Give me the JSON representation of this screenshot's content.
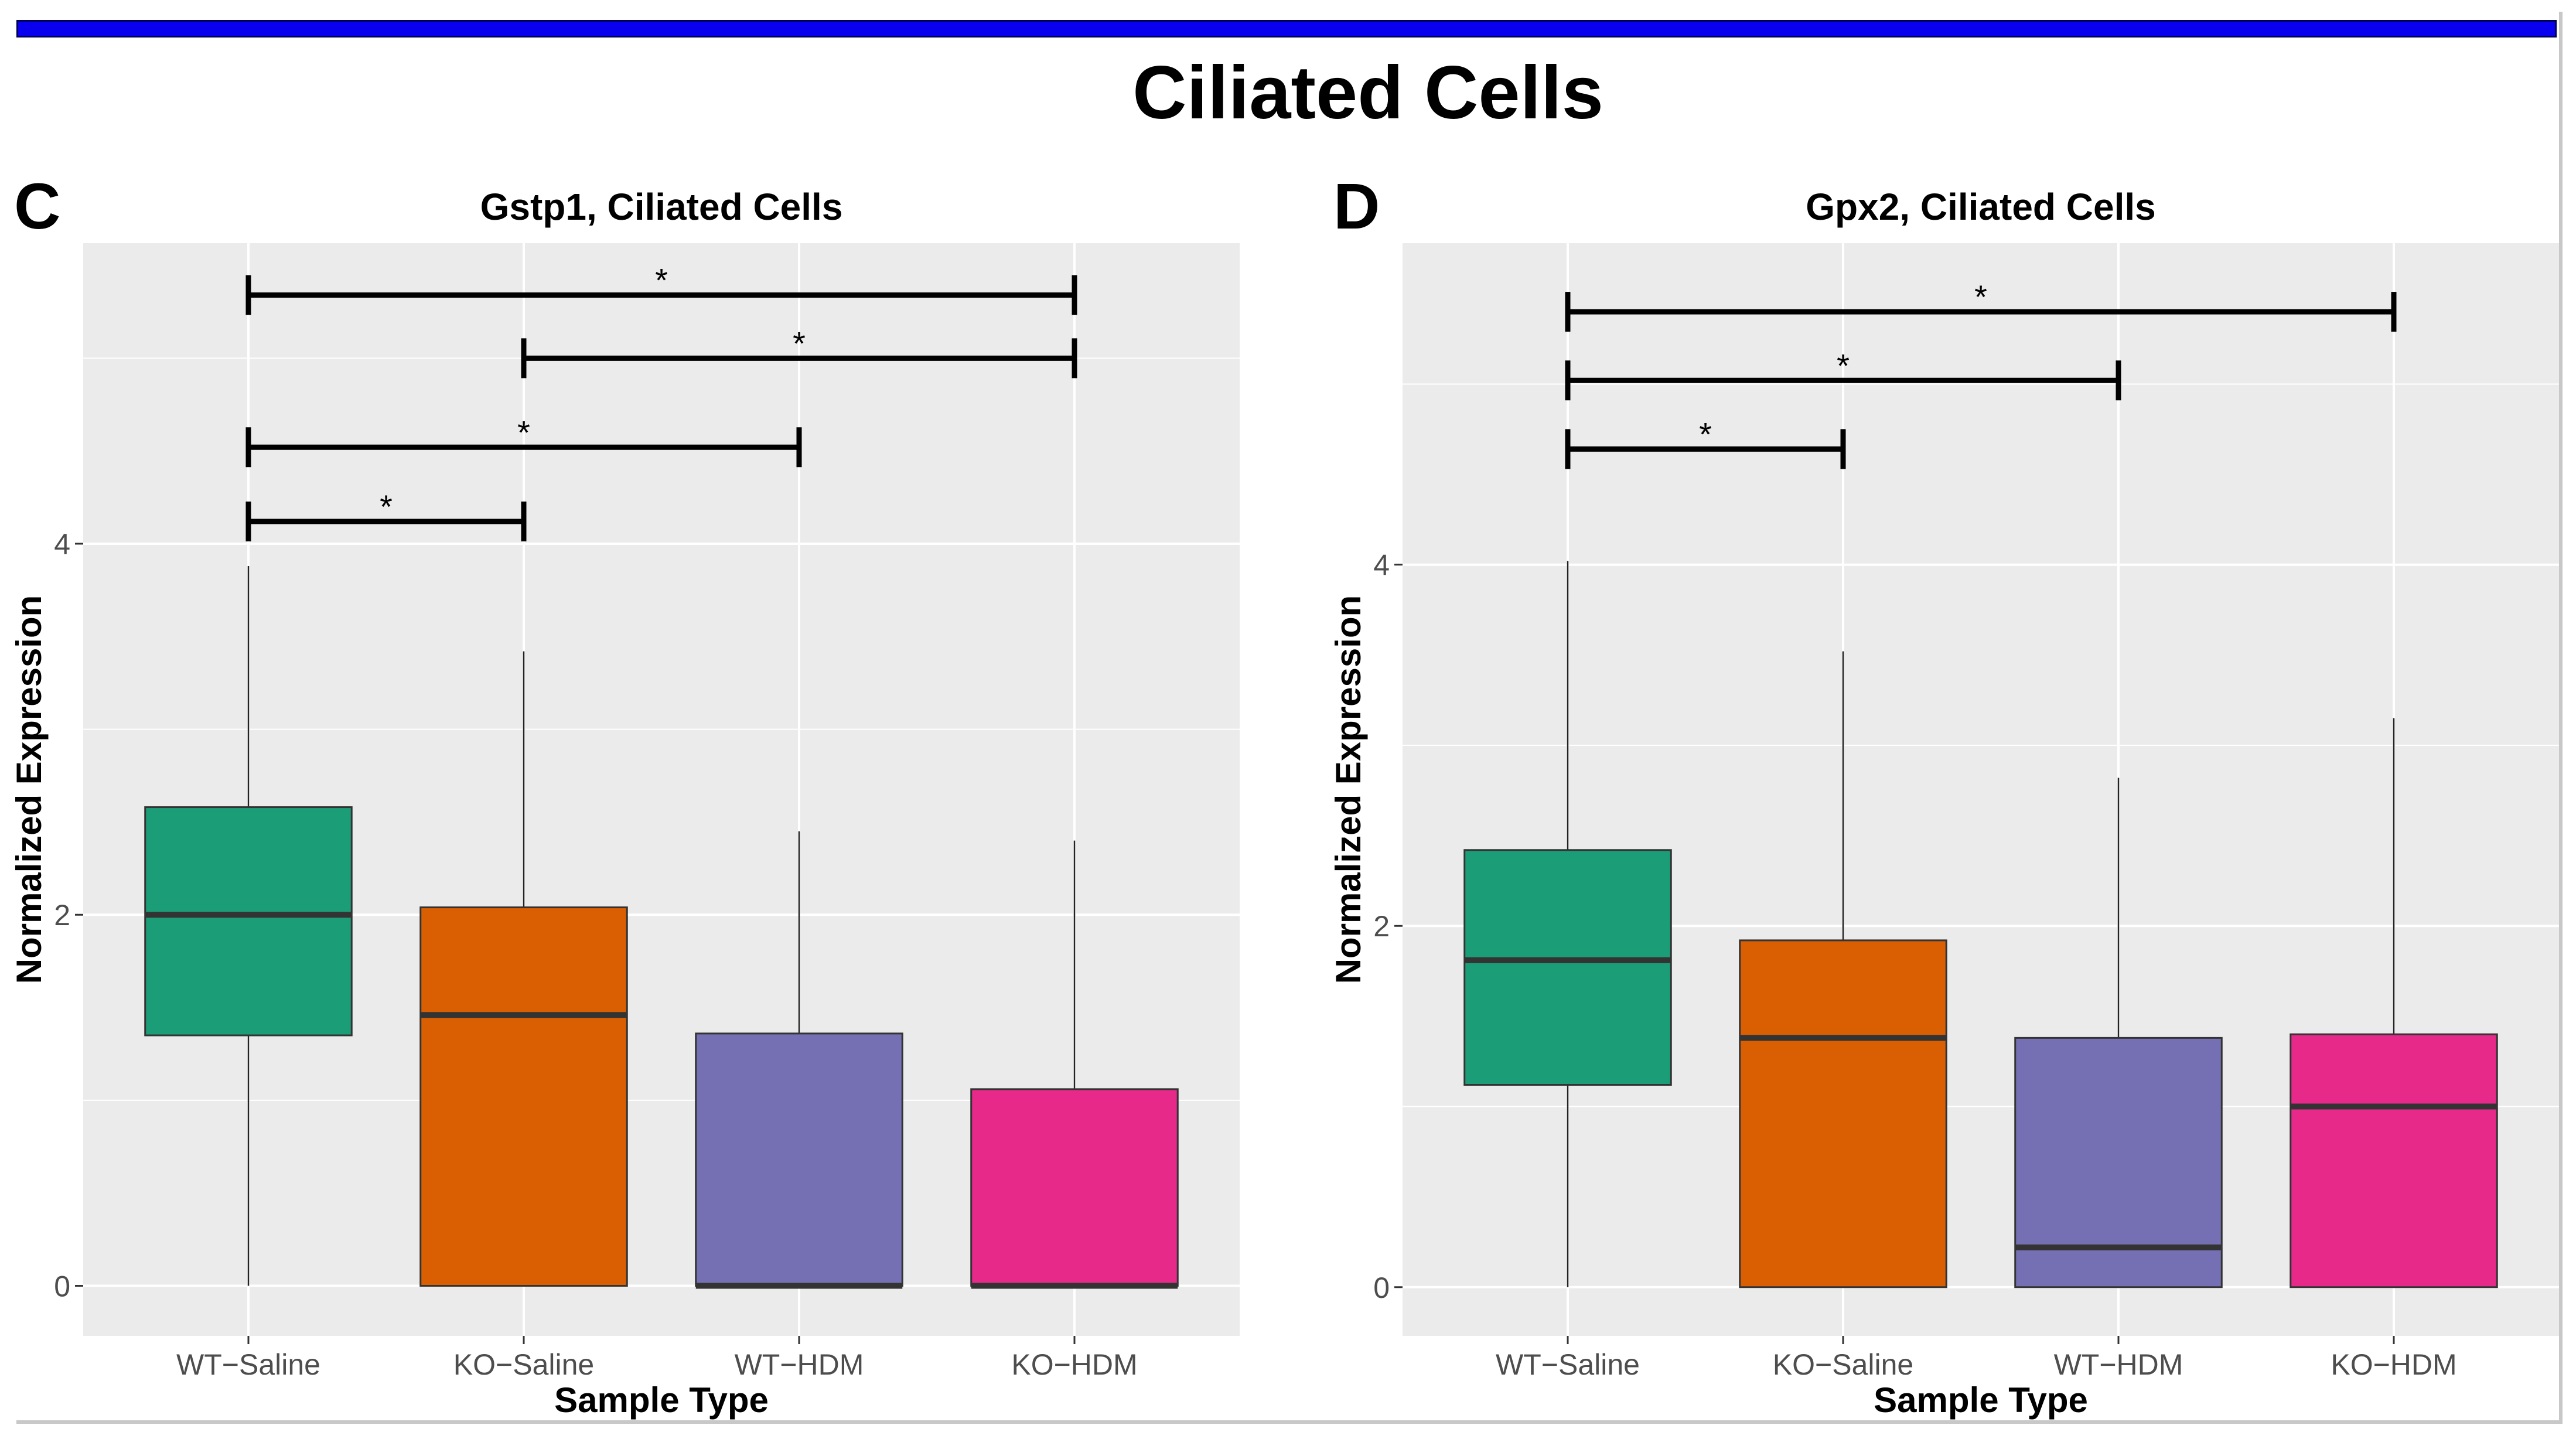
{
  "title": "Ciliated Cells",
  "colors": {
    "top_bar": "#0a00f0",
    "panel_bg": "#ebebeb",
    "grid": "#ffffff",
    "text": "#000000",
    "tick_text": "#4d4d4d"
  },
  "chart_data": [
    {
      "type": "box",
      "panel_letter": "C",
      "title": "Gstp1, Ciliated Cells",
      "xlabel": "Sample Type",
      "ylabel": "Normalized Expression",
      "categories": [
        "WT−Saline",
        "KO−Saline",
        "WT−HDM",
        "KO−HDM"
      ],
      "fill_colors": [
        "#1b9e77",
        "#d95f02",
        "#7570b3",
        "#e7298a"
      ],
      "boxes": [
        {
          "min": 0,
          "q1": 1.35,
          "median": 2.0,
          "q3": 2.58,
          "max": 3.88
        },
        {
          "min": 0,
          "q1": 0,
          "median": 1.46,
          "q3": 2.04,
          "max": 3.42
        },
        {
          "min": 0,
          "q1": 0,
          "median": 0,
          "q3": 1.36,
          "max": 2.45
        },
        {
          "min": 0,
          "q1": 0,
          "median": 0,
          "q3": 1.06,
          "max": 2.4
        }
      ],
      "ylim": [
        -0.27,
        5.62
      ],
      "yticks": [
        0,
        2,
        4
      ],
      "significance": [
        {
          "from": 0,
          "to": 1,
          "y": 4.12,
          "label": "*"
        },
        {
          "from": 0,
          "to": 2,
          "y": 4.52,
          "label": "*"
        },
        {
          "from": 1,
          "to": 3,
          "y": 5.0,
          "label": "*"
        },
        {
          "from": 0,
          "to": 3,
          "y": 5.34,
          "label": "*"
        }
      ]
    },
    {
      "type": "box",
      "panel_letter": "D",
      "title": "Gpx2, Ciliated Cells",
      "xlabel": "Sample Type",
      "ylabel": "Normalized Expression",
      "categories": [
        "WT−Saline",
        "KO−Saline",
        "WT−HDM",
        "KO−HDM"
      ],
      "fill_colors": [
        "#1b9e77",
        "#d95f02",
        "#7570b3",
        "#e7298a"
      ],
      "boxes": [
        {
          "min": 0,
          "q1": 1.12,
          "median": 1.81,
          "q3": 2.42,
          "max": 4.02
        },
        {
          "min": 0,
          "q1": 0,
          "median": 1.38,
          "q3": 1.92,
          "max": 3.52
        },
        {
          "min": 0,
          "q1": 0,
          "median": 0.22,
          "q3": 1.38,
          "max": 2.82
        },
        {
          "min": 0,
          "q1": 0,
          "median": 1.0,
          "q3": 1.4,
          "max": 3.15
        }
      ],
      "ylim": [
        -0.27,
        5.78
      ],
      "yticks": [
        0,
        2,
        4
      ],
      "significance": [
        {
          "from": 0,
          "to": 1,
          "y": 4.64,
          "label": "*"
        },
        {
          "from": 0,
          "to": 2,
          "y": 5.02,
          "label": "*"
        },
        {
          "from": 0,
          "to": 3,
          "y": 5.4,
          "label": "*"
        }
      ]
    }
  ]
}
